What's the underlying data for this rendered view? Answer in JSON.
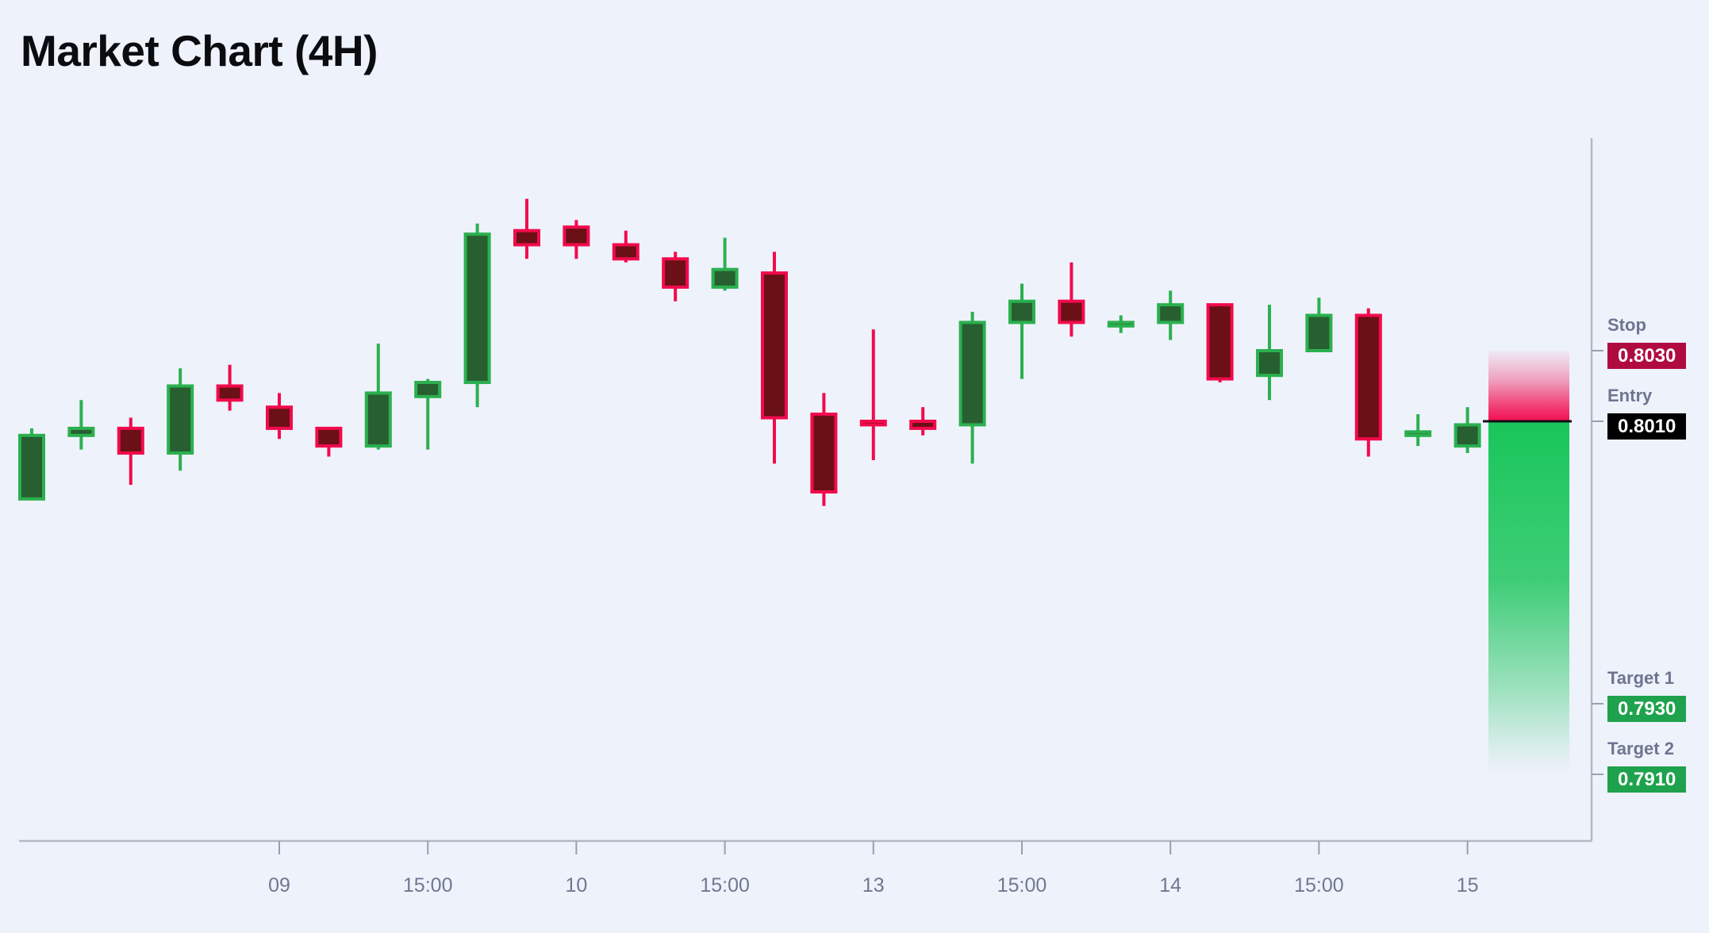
{
  "page": {
    "title": "Market Chart (4H)",
    "background_color": "#eef2fb"
  },
  "chart_data": {
    "type": "candlestick",
    "title": "Market Chart (4H)",
    "timeframe": "4H",
    "grid": "off",
    "legend": "none",
    "x_axis": {
      "ticks": [
        {
          "label": "09",
          "candle_index": 5
        },
        {
          "label": "15:00",
          "candle_index": 8
        },
        {
          "label": "10",
          "candle_index": 11
        },
        {
          "label": "15:00",
          "candle_index": 14
        },
        {
          "label": "13",
          "candle_index": 17
        },
        {
          "label": "15:00",
          "candle_index": 20
        },
        {
          "label": "14",
          "candle_index": 23
        },
        {
          "label": "15:00",
          "candle_index": 26
        },
        {
          "label": "15",
          "candle_index": 29
        }
      ]
    },
    "y_axis": {
      "side": "right",
      "price_labels_shown": false,
      "visible_price_range": [
        0.7905,
        0.8085
      ]
    },
    "candles": [
      {
        "o": 0.7988,
        "h": 0.8008,
        "l": 0.7988,
        "c": 0.8006
      },
      {
        "o": 0.8006,
        "h": 0.8016,
        "l": 0.8002,
        "c": 0.8008
      },
      {
        "o": 0.8008,
        "h": 0.8011,
        "l": 0.7992,
        "c": 0.8001
      },
      {
        "o": 0.8001,
        "h": 0.8025,
        "l": 0.7996,
        "c": 0.802
      },
      {
        "o": 0.802,
        "h": 0.8026,
        "l": 0.8013,
        "c": 0.8016
      },
      {
        "o": 0.8014,
        "h": 0.8018,
        "l": 0.8005,
        "c": 0.8008
      },
      {
        "o": 0.8008,
        "h": 0.8008,
        "l": 0.8,
        "c": 0.8003
      },
      {
        "o": 0.8003,
        "h": 0.8032,
        "l": 0.8002,
        "c": 0.8018
      },
      {
        "o": 0.8017,
        "h": 0.8022,
        "l": 0.8002,
        "c": 0.8021
      },
      {
        "o": 0.8021,
        "h": 0.8066,
        "l": 0.8014,
        "c": 0.8063
      },
      {
        "o": 0.8064,
        "h": 0.8073,
        "l": 0.8056,
        "c": 0.806
      },
      {
        "o": 0.8065,
        "h": 0.8067,
        "l": 0.8056,
        "c": 0.806
      },
      {
        "o": 0.806,
        "h": 0.8064,
        "l": 0.8055,
        "c": 0.8056
      },
      {
        "o": 0.8056,
        "h": 0.8058,
        "l": 0.8044,
        "c": 0.8048
      },
      {
        "o": 0.8048,
        "h": 0.8062,
        "l": 0.8047,
        "c": 0.8053
      },
      {
        "o": 0.8052,
        "h": 0.8058,
        "l": 0.7998,
        "c": 0.8011
      },
      {
        "o": 0.8012,
        "h": 0.8018,
        "l": 0.7986,
        "c": 0.799
      },
      {
        "o": 0.801,
        "h": 0.8036,
        "l": 0.7999,
        "c": 0.8009
      },
      {
        "o": 0.801,
        "h": 0.8014,
        "l": 0.8006,
        "c": 0.8008
      },
      {
        "o": 0.8009,
        "h": 0.8041,
        "l": 0.7998,
        "c": 0.8038
      },
      {
        "o": 0.8038,
        "h": 0.8049,
        "l": 0.8022,
        "c": 0.8044
      },
      {
        "o": 0.8044,
        "h": 0.8055,
        "l": 0.8034,
        "c": 0.8038
      },
      {
        "o": 0.8037,
        "h": 0.804,
        "l": 0.8035,
        "c": 0.8038
      },
      {
        "o": 0.8038,
        "h": 0.8047,
        "l": 0.8033,
        "c": 0.8043
      },
      {
        "o": 0.8043,
        "h": 0.8043,
        "l": 0.8021,
        "c": 0.8022
      },
      {
        "o": 0.8023,
        "h": 0.8043,
        "l": 0.8016,
        "c": 0.803
      },
      {
        "o": 0.803,
        "h": 0.8045,
        "l": 0.803,
        "c": 0.804
      },
      {
        "o": 0.804,
        "h": 0.8042,
        "l": 0.8,
        "c": 0.8005
      },
      {
        "o": 0.8006,
        "h": 0.8012,
        "l": 0.8003,
        "c": 0.8007
      },
      {
        "o": 0.8003,
        "h": 0.8014,
        "l": 0.8001,
        "c": 0.8009
      }
    ],
    "style": {
      "bullish_body_fill": "#275f31",
      "bullish_border": "#2bb04f",
      "bearish_body_fill": "#6b1016",
      "bearish_border": "#f20a4c",
      "axis_line_color": "#b3b8c4",
      "tick_color": "#99a0ad",
      "tick_label_color": "#707790"
    }
  },
  "trade_annotations": {
    "stop": {
      "label": "Stop",
      "value": "0.8030",
      "badge_color": "#b00b41"
    },
    "entry": {
      "label": "Entry",
      "value": "0.8010",
      "badge_color": "#000000"
    },
    "target1": {
      "label": "Target 1",
      "value": "0.7930",
      "badge_color": "#1fa24d"
    },
    "target2": {
      "label": "Target 2",
      "value": "0.7910",
      "badge_color": "#1fa24d"
    },
    "risk_zone_color": "#f20d50",
    "reward_zone_color": "#12c455",
    "entry_line_color": "#101114"
  }
}
